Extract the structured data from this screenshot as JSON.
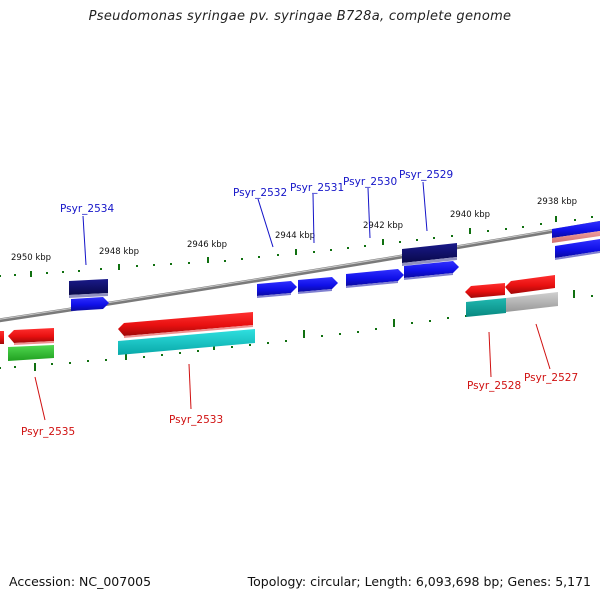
{
  "title": "Pseudomonas syringae pv. syringae B728a, complete genome",
  "footer": {
    "accession": "Accession: NC_007005",
    "summary": "Topology: circular; Length: 6,093,698 bp; Genes: 5,171"
  },
  "colors": {
    "forward_gene": "#1010e8",
    "forward_gene_dark": "#101070",
    "reverse_gene": "#e81010",
    "cds_reverse": "#10c8c8",
    "cds_green": "#30c030",
    "cds_grey": "#b0b0b0",
    "forward_label": "#1414c8",
    "reverse_label": "#d01010",
    "tick": "#107010",
    "backbone": "#808080"
  },
  "scale_labels": [
    "2950 kbp",
    "2948 kbp",
    "2946 kbp",
    "2944 kbp",
    "2942 kbp",
    "2940 kbp",
    "2938 kbp"
  ],
  "forward_genes": [
    "Psyr_2534",
    "Psyr_2532",
    "Psyr_2531",
    "Psyr_2530",
    "Psyr_2529"
  ],
  "reverse_genes": [
    "Psyr_2535",
    "Psyr_2533",
    "Psyr_2528",
    "Psyr_2527"
  ]
}
